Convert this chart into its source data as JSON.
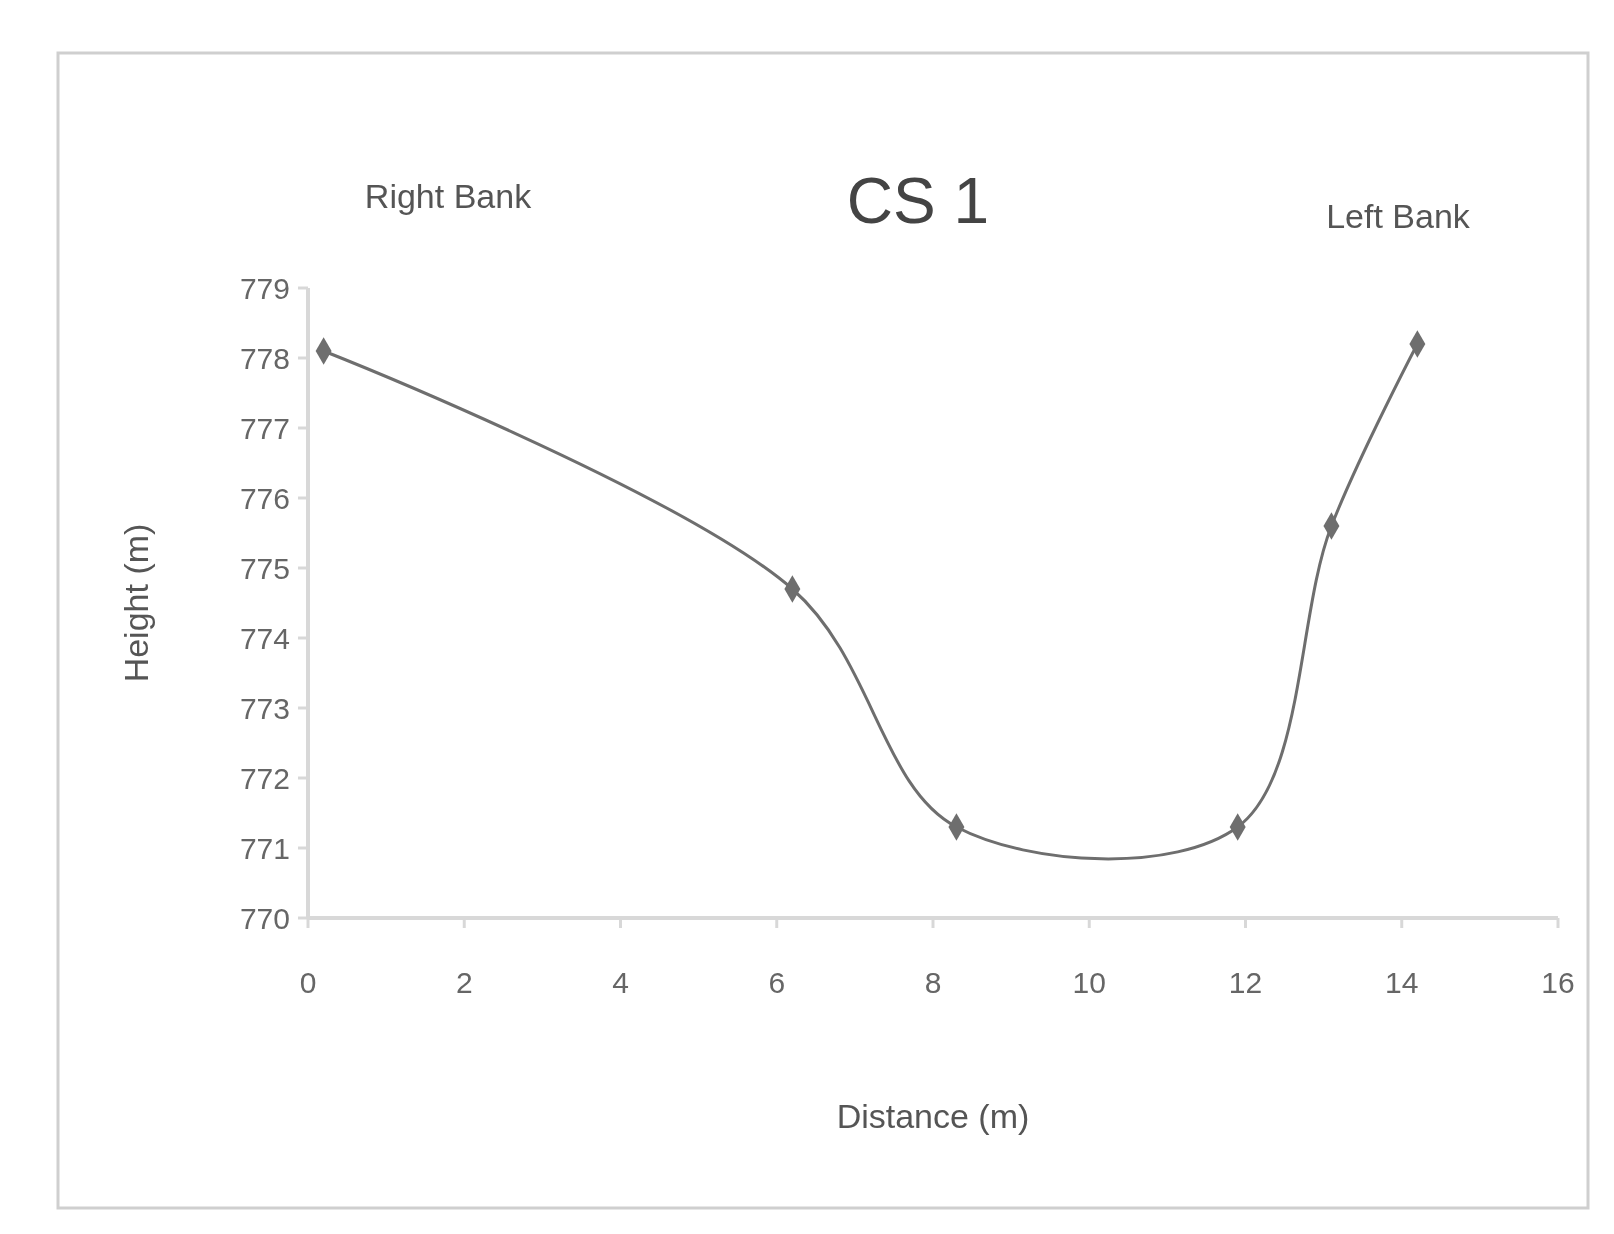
{
  "chart_data": {
    "type": "line",
    "title": "CS 1",
    "xlabel": "Distance (m)",
    "ylabel": "Height (m)",
    "annotations": [
      "Right Bank",
      "Left Bank"
    ],
    "series": [
      {
        "color": "#6e6e6e",
        "x": [
          0.2,
          6.2,
          8.3,
          11.9,
          13.1,
          14.2
        ],
        "values": [
          778.1,
          774.7,
          771.3,
          771.3,
          775.6,
          778.2
        ]
      }
    ],
    "xlim": [
      0,
      16
    ],
    "xticks": [
      0,
      2,
      4,
      6,
      8,
      10,
      12,
      14,
      16
    ],
    "ylim": [
      770,
      779
    ],
    "yticks": [
      770,
      771,
      772,
      773,
      774,
      775,
      776,
      777,
      778,
      779
    ],
    "marker": "diamond",
    "line_style": "solid"
  }
}
